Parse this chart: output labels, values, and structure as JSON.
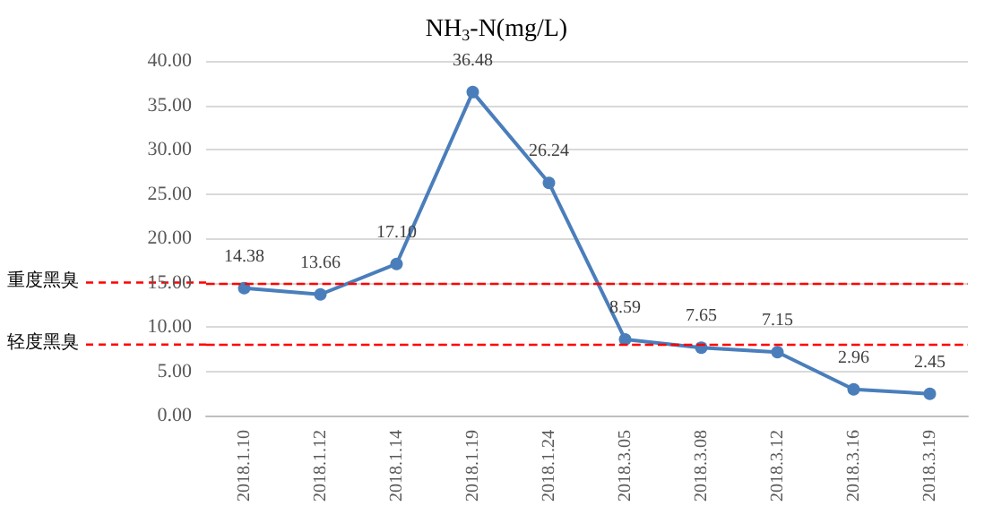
{
  "chart_data": {
    "type": "line",
    "title": "NH$_{3}$-N(mg/L)",
    "categories": [
      "2018.1.10",
      "2018.1.12",
      "2018.1.14",
      "2018.1.19",
      "2018.1.24",
      "2018.3.05",
      "2018.3.08",
      "2018.3.12",
      "2018.3.16",
      "2018.3.19"
    ],
    "series": [
      {
        "color": "#4a7ebb",
        "values": [
          14.38,
          13.66,
          17.1,
          36.48,
          26.24,
          8.59,
          7.65,
          7.15,
          2.96,
          2.45
        ],
        "value_labels": [
          "14.38",
          "13.66",
          "17.10",
          "36.48",
          "26.24",
          "8.59",
          "7.65",
          "7.15",
          "2.96",
          "2.45"
        ]
      }
    ],
    "ylim": [
      0,
      40
    ],
    "yticks": [
      {
        "value": 0,
        "label": "0.00"
      },
      {
        "value": 5,
        "label": "5.00"
      },
      {
        "value": 10,
        "label": "10.00"
      },
      {
        "value": 15,
        "label": "15.00"
      },
      {
        "value": 20,
        "label": "20.00"
      },
      {
        "value": 25,
        "label": "25.00"
      },
      {
        "value": 30,
        "label": "30.00"
      },
      {
        "value": 35,
        "label": "35.00"
      },
      {
        "value": 40,
        "label": "40.00"
      }
    ],
    "ref_lines": [
      {
        "axis": "y",
        "value": 15,
        "label": "重度黑臭",
        "color": "#ff0000",
        "line_style": "dashed"
      },
      {
        "axis": "y",
        "value": 8,
        "label": "轻度黑臭",
        "color": "#ff0000",
        "line_style": "dashed"
      }
    ],
    "grid": "y",
    "marker": "circle",
    "line_style": "solid"
  }
}
